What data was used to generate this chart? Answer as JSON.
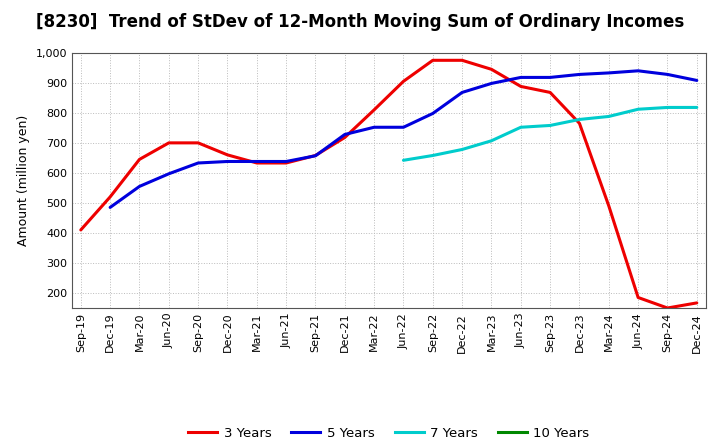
{
  "title": "[8230]  Trend of StDev of 12-Month Moving Sum of Ordinary Incomes",
  "ylabel": "Amount (million yen)",
  "ylim": [
    150,
    1000
  ],
  "yticks": [
    200,
    300,
    400,
    500,
    600,
    700,
    800,
    900,
    1000
  ],
  "background_color": "#ffffff",
  "plot_bg_color": "#ffffff",
  "grid_color": "#bbbbbb",
  "series": {
    "3 Years": {
      "color": "#ee0000",
      "x": [
        "Sep-19",
        "Dec-19",
        "Mar-20",
        "Jun-20",
        "Sep-20",
        "Dec-20",
        "Mar-21",
        "Jun-21",
        "Sep-21",
        "Dec-21",
        "Mar-22",
        "Jun-22",
        "Sep-22",
        "Dec-22",
        "Mar-23",
        "Jun-23",
        "Sep-23",
        "Dec-23",
        "Mar-24",
        "Jun-24",
        "Sep-24",
        "Dec-24"
      ],
      "y": [
        410,
        520,
        645,
        700,
        700,
        660,
        633,
        633,
        658,
        718,
        810,
        905,
        975,
        975,
        945,
        888,
        868,
        765,
        490,
        185,
        150,
        167
      ]
    },
    "5 Years": {
      "color": "#0000dd",
      "x": [
        "Dec-19",
        "Mar-20",
        "Jun-20",
        "Sep-20",
        "Dec-20",
        "Mar-21",
        "Jun-21",
        "Sep-21",
        "Dec-21",
        "Mar-22",
        "Jun-22",
        "Sep-22",
        "Dec-22",
        "Mar-23",
        "Jun-23",
        "Sep-23",
        "Dec-23",
        "Mar-24",
        "Jun-24",
        "Sep-24",
        "Dec-24"
      ],
      "y": [
        485,
        555,
        597,
        633,
        638,
        638,
        638,
        657,
        728,
        752,
        752,
        798,
        868,
        898,
        918,
        918,
        928,
        933,
        940,
        928,
        908
      ]
    },
    "7 Years": {
      "color": "#00cccc",
      "x": [
        "Jun-22",
        "Sep-22",
        "Dec-22",
        "Mar-23",
        "Jun-23",
        "Sep-23",
        "Dec-23",
        "Mar-24",
        "Jun-24",
        "Sep-24",
        "Dec-24"
      ],
      "y": [
        642,
        658,
        678,
        707,
        752,
        758,
        778,
        788,
        812,
        818,
        818
      ]
    },
    "10 Years": {
      "color": "#008800",
      "x": [],
      "y": []
    }
  },
  "x_labels": [
    "Sep-19",
    "Dec-19",
    "Mar-20",
    "Jun-20",
    "Sep-20",
    "Dec-20",
    "Mar-21",
    "Jun-21",
    "Sep-21",
    "Dec-21",
    "Mar-22",
    "Jun-22",
    "Sep-22",
    "Dec-22",
    "Mar-23",
    "Jun-23",
    "Sep-23",
    "Dec-23",
    "Mar-24",
    "Jun-24",
    "Sep-24",
    "Dec-24"
  ],
  "legend_order": [
    "3 Years",
    "5 Years",
    "7 Years",
    "10 Years"
  ],
  "title_fontsize": 12,
  "axis_fontsize": 9,
  "tick_fontsize": 8,
  "legend_fontsize": 9.5,
  "linewidth": 2.2
}
